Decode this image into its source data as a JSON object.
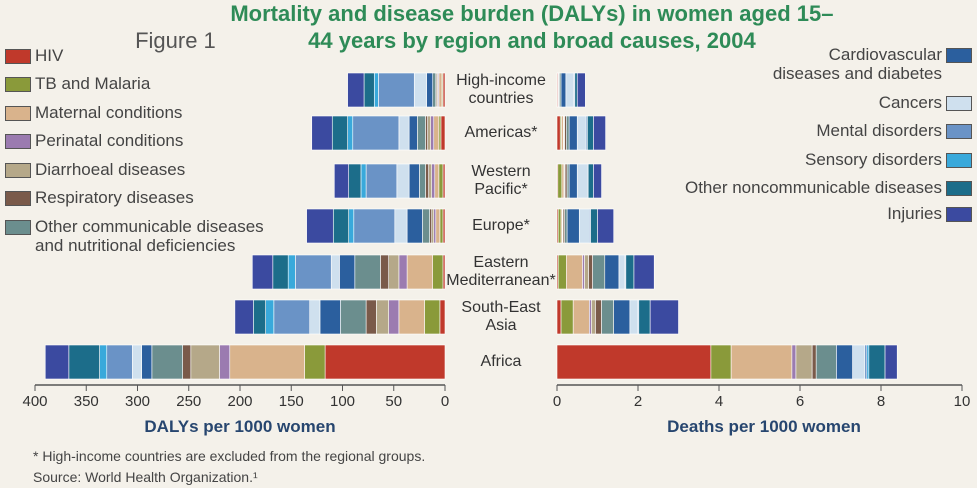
{
  "chart_data": [
    {
      "type": "bar",
      "orientation": "horizontal",
      "stacked": true,
      "xaxis_reversed": true,
      "figure_label": "Figure 1",
      "title": "Mortality and disease burden (DALYs) in women aged 15–44 years by region and broad causes, 2004",
      "categories": [
        "High-income\ncountries",
        "Americas*",
        "Western\nPacific*",
        "Europe*",
        "Eastern\nMediterranean*",
        "South-East\nAsia",
        "Africa"
      ],
      "xlabel": "DALYs per 1000 women",
      "xlim": [
        0,
        400
      ],
      "xticks": [
        0,
        50,
        100,
        150,
        200,
        250,
        300,
        350,
        400
      ],
      "series": [
        {
          "name": "HIV",
          "color": "#c0392b",
          "values": [
            2,
            4,
            2,
            2,
            2,
            5,
            117
          ]
        },
        {
          "name": "TB and Malaria",
          "color": "#8a9a3a",
          "values": [
            1,
            2,
            4,
            3,
            10,
            15,
            20
          ]
        },
        {
          "name": "Maternal conditions",
          "color": "#d9b38c",
          "values": [
            3,
            5,
            4,
            4,
            25,
            25,
            73
          ]
        },
        {
          "name": "Perinatal conditions",
          "color": "#9b7bb0",
          "values": [
            1,
            3,
            3,
            2,
            8,
            10,
            10
          ]
        },
        {
          "name": "Diarrhoeal diseases",
          "color": "#b5a889",
          "values": [
            1,
            3,
            3,
            2,
            10,
            12,
            28
          ]
        },
        {
          "name": "Respiratory diseases",
          "color": "#7a5a4a",
          "values": [
            1,
            2,
            3,
            2,
            8,
            10,
            8
          ]
        },
        {
          "name": "Other communicable diseases\nand nutritional deficiencies",
          "color": "#6b8e8e",
          "values": [
            3,
            8,
            6,
            7,
            25,
            25,
            30
          ]
        },
        {
          "name": "Cardiovascular\ndiseases and diabetes",
          "color": "#2b5f9e",
          "values": [
            6,
            8,
            10,
            15,
            15,
            20,
            10
          ]
        },
        {
          "name": "Cancers",
          "color": "#cfe0ee",
          "values": [
            12,
            10,
            12,
            12,
            8,
            10,
            9
          ]
        },
        {
          "name": "Mental disorders",
          "color": "#6a93c6",
          "values": [
            35,
            45,
            30,
            40,
            35,
            35,
            25
          ]
        },
        {
          "name": "Sensory disorders",
          "color": "#39a9db",
          "values": [
            4,
            5,
            5,
            5,
            7,
            8,
            7
          ]
        },
        {
          "name": "Other noncommunicable diseases",
          "color": "#1c6d8a",
          "values": [
            10,
            15,
            12,
            15,
            15,
            12,
            30
          ]
        },
        {
          "name": "Injuries",
          "color": "#3b4aa0",
          "values": [
            16,
            20,
            14,
            26,
            20,
            18,
            23
          ]
        }
      ],
      "footnote": "* High-income countries are excluded from the regional groups.",
      "source": "Source: World Health Organization.¹"
    },
    {
      "type": "bar",
      "orientation": "horizontal",
      "stacked": true,
      "xaxis_reversed": false,
      "xlabel": "Deaths per 1000 women",
      "xlim": [
        0,
        10
      ],
      "xticks": [
        0,
        2,
        4,
        6,
        8,
        10
      ],
      "series": [
        {
          "values": [
            0.02,
            0.08,
            0.02,
            0.03,
            0.03,
            0.1,
            3.8
          ]
        },
        {
          "values": [
            0.01,
            0.03,
            0.1,
            0.07,
            0.2,
            0.3,
            0.5
          ]
        },
        {
          "values": [
            0.01,
            0.05,
            0.05,
            0.03,
            0.4,
            0.4,
            1.5
          ]
        },
        {
          "values": [
            0,
            0.01,
            0.01,
            0.01,
            0.05,
            0.05,
            0.1
          ]
        },
        {
          "values": [
            0,
            0.02,
            0.02,
            0.01,
            0.1,
            0.1,
            0.4
          ]
        },
        {
          "values": [
            0.02,
            0.04,
            0.05,
            0.04,
            0.1,
            0.15,
            0.1
          ]
        },
        {
          "values": [
            0.04,
            0.07,
            0.05,
            0.06,
            0.3,
            0.3,
            0.5
          ]
        },
        {
          "values": [
            0.12,
            0.2,
            0.2,
            0.3,
            0.35,
            0.4,
            0.4
          ]
        },
        {
          "values": [
            0.2,
            0.22,
            0.25,
            0.25,
            0.15,
            0.2,
            0.3
          ]
        },
        {
          "values": [
            0.02,
            0.03,
            0.02,
            0.03,
            0.02,
            0.02,
            0.05
          ]
        },
        {
          "values": [
            0,
            0,
            0,
            0,
            0,
            0,
            0.05
          ]
        },
        {
          "values": [
            0.06,
            0.15,
            0.13,
            0.17,
            0.2,
            0.28,
            0.4
          ]
        },
        {
          "values": [
            0.2,
            0.3,
            0.2,
            0.4,
            0.5,
            0.7,
            0.3
          ]
        }
      ]
    }
  ]
}
